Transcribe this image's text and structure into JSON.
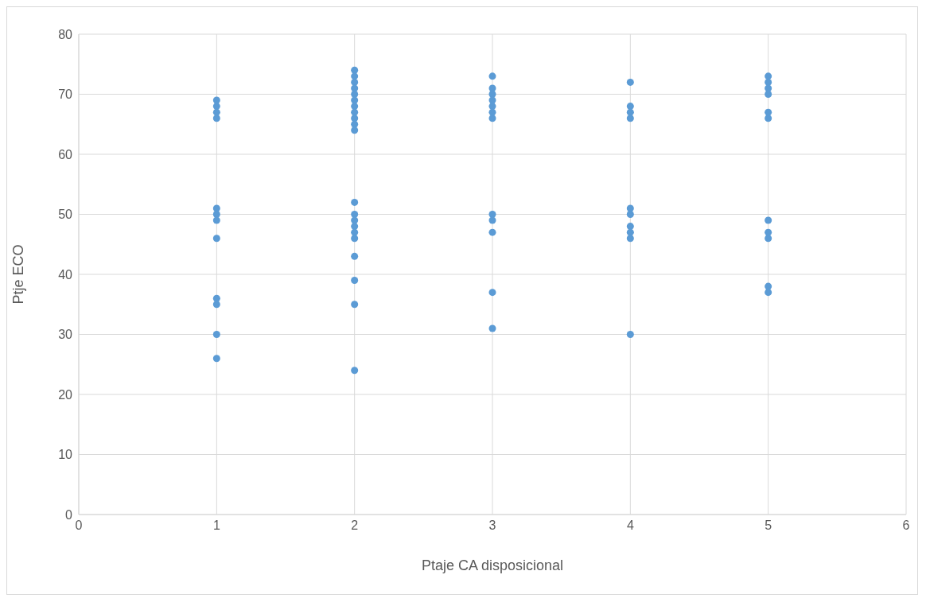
{
  "chart_data": {
    "type": "scatter",
    "xlabel": "Ptaje CA disposicional",
    "ylabel": "Ptje ECO",
    "x": [
      1,
      1,
      1,
      1,
      1,
      1,
      1,
      1,
      1,
      1,
      1,
      1,
      2,
      2,
      2,
      2,
      2,
      2,
      2,
      2,
      2,
      2,
      2,
      2,
      2,
      2,
      2,
      2,
      2,
      2,
      2,
      2,
      2,
      3,
      3,
      3,
      3,
      3,
      3,
      3,
      3,
      3,
      3,
      3,
      3,
      4,
      4,
      4,
      4,
      4,
      4,
      4,
      4,
      4,
      4,
      5,
      5,
      5,
      5,
      5,
      5,
      5,
      5,
      5,
      5,
      5
    ],
    "series": [
      {
        "color": "#5b9bd5",
        "values": [
          69,
          68,
          67,
          66,
          51,
          50,
          49,
          46,
          36,
          35,
          30,
          26,
          74,
          73,
          72,
          71,
          70,
          69,
          68,
          67,
          66,
          65,
          64,
          52,
          50,
          49,
          48,
          47,
          46,
          43,
          39,
          35,
          24,
          73,
          71,
          70,
          69,
          68,
          67,
          66,
          50,
          49,
          47,
          37,
          31,
          72,
          68,
          67,
          66,
          51,
          50,
          48,
          47,
          46,
          30,
          73,
          72,
          71,
          70,
          67,
          66,
          49,
          47,
          46,
          38,
          37
        ]
      }
    ],
    "xlim": [
      0,
      6
    ],
    "xticks": [
      0,
      1,
      2,
      3,
      4,
      5,
      6
    ],
    "ylim": [
      0,
      80
    ],
    "yticks": [
      0,
      10,
      20,
      30,
      40,
      50,
      60,
      70,
      80
    ],
    "grid": true,
    "marker": "circle",
    "legend": false
  }
}
